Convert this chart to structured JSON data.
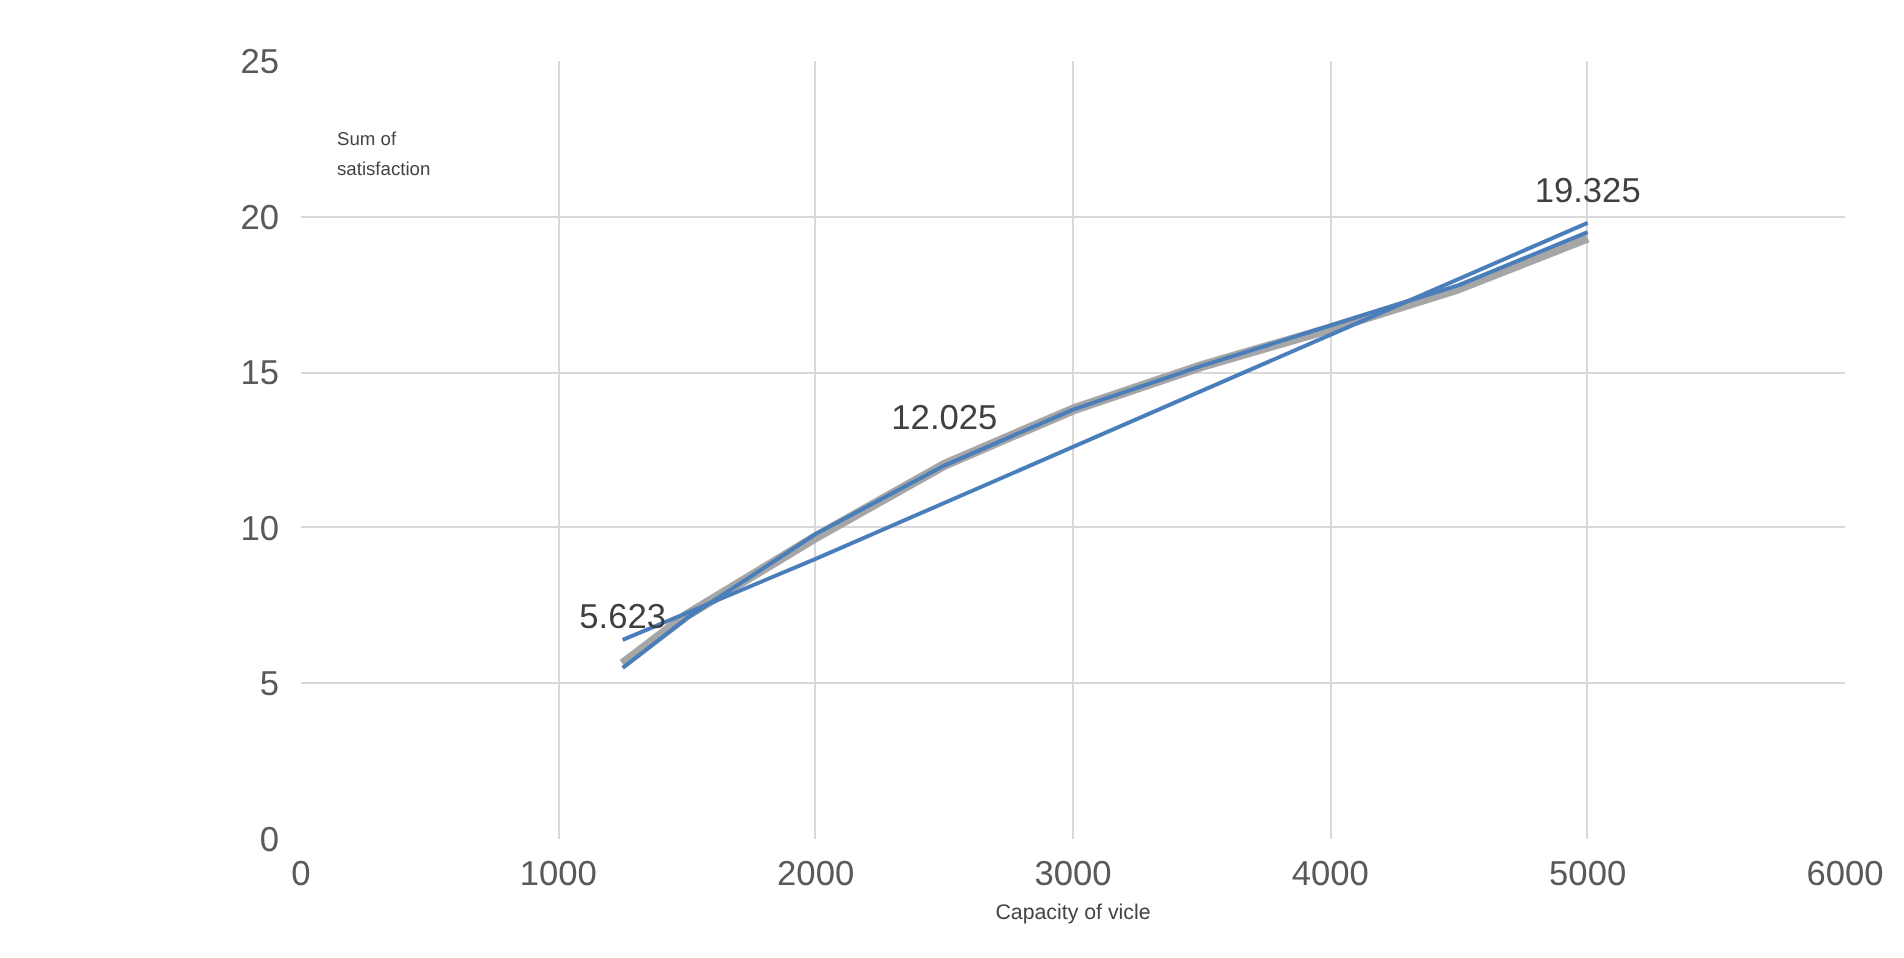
{
  "chart_data": {
    "type": "line",
    "xlabel": "Capacity of vicle",
    "ylabel": "Sum of satisfaction",
    "xlim": [
      0,
      6000
    ],
    "xticks": [
      0,
      1000,
      2000,
      3000,
      4000,
      5000,
      6000
    ],
    "ylim": [
      0,
      25
    ],
    "yticks": [
      0,
      5,
      10,
      15,
      20,
      25
    ],
    "grid": true,
    "marker": "none",
    "line_style": "solid",
    "series": [
      {
        "color": "#a6a6a6",
        "x": [
          1250,
          1500,
          2000,
          2500,
          3000,
          3500,
          4000,
          4500,
          5000
        ],
        "values": [
          5.623,
          7.2,
          9.7,
          12.025,
          13.8,
          15.2,
          16.4,
          17.7,
          19.325
        ],
        "value_labels": [
          "5.623",
          null,
          null,
          "12.025",
          null,
          null,
          null,
          null,
          "19.325"
        ]
      },
      {
        "color": "#4a7ebb",
        "x": [
          1250,
          1500,
          2000,
          2500,
          3000,
          3500,
          4000,
          4500,
          5000
        ],
        "values": [
          5.5,
          7.1,
          9.8,
          12.0,
          13.8,
          15.2,
          16.5,
          17.8,
          19.5
        ]
      },
      {
        "color": "#4a7ebb",
        "x": [
          1250,
          2000,
          3000,
          4000,
          5000
        ],
        "values": [
          6.4,
          9.0,
          12.6,
          16.2,
          19.8
        ]
      }
    ]
  }
}
